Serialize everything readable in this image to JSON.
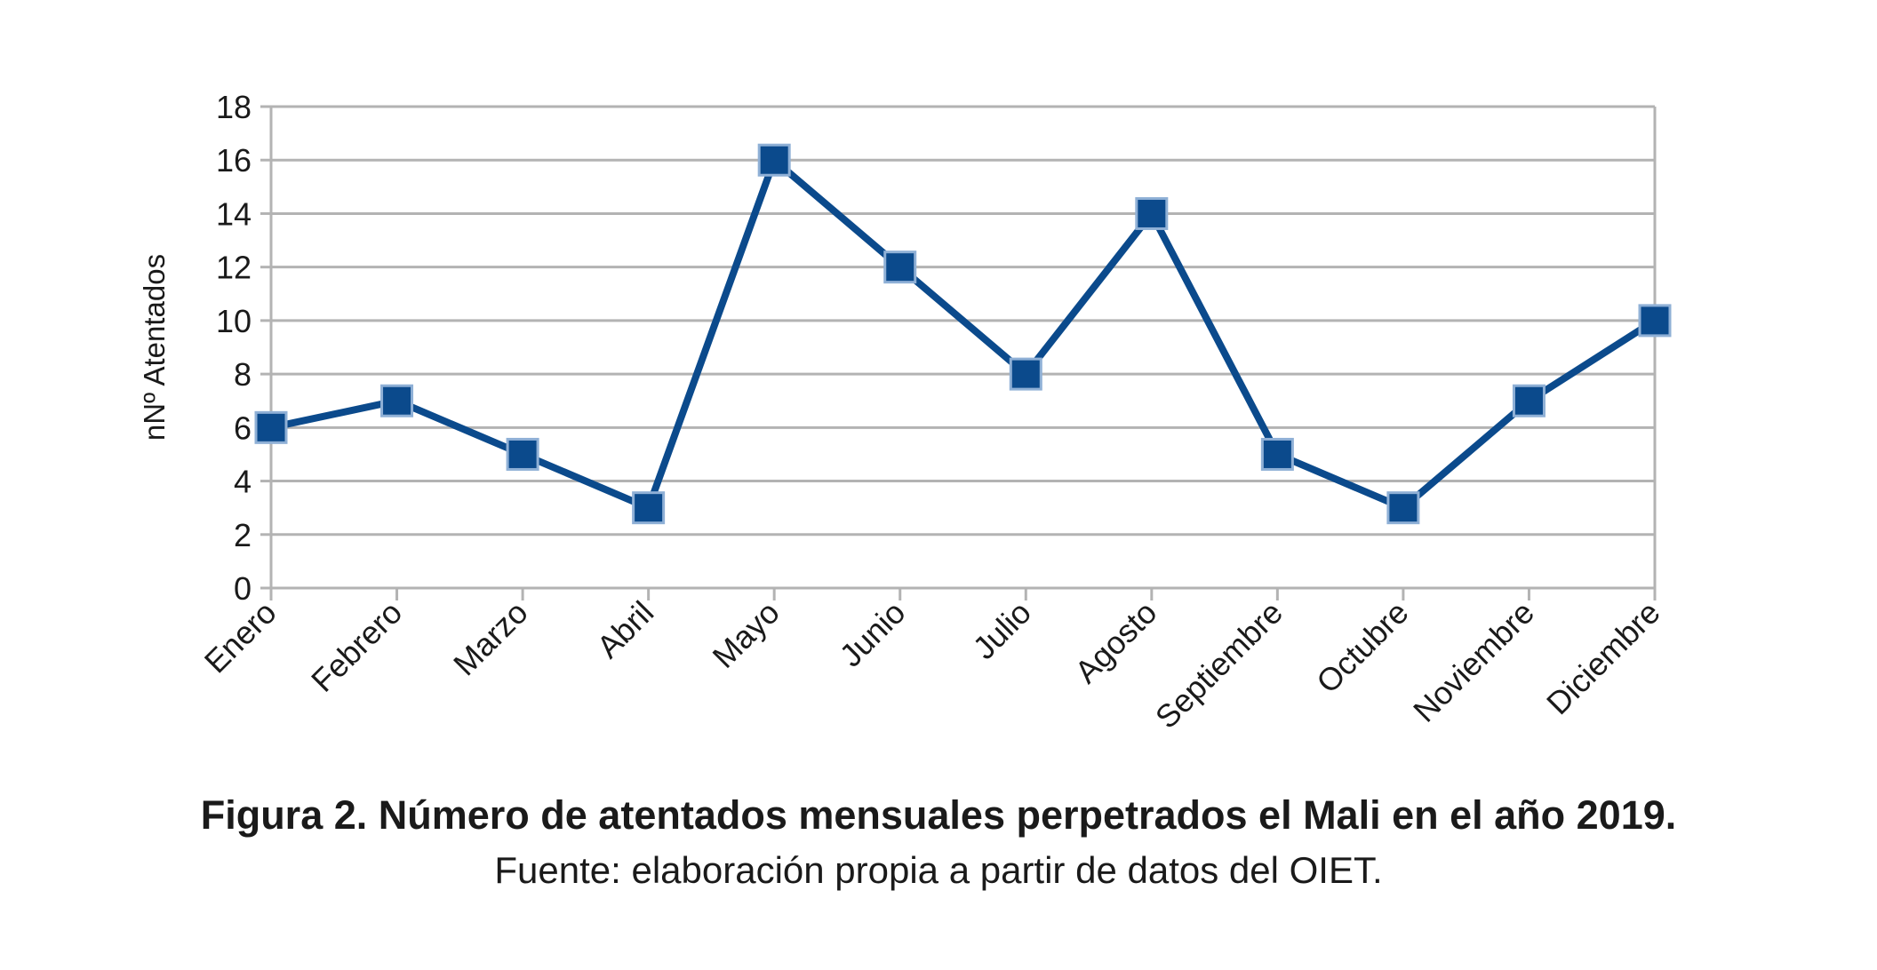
{
  "chart_data": {
    "type": "line",
    "categories": [
      "Enero",
      "Febrero",
      "Marzo",
      "Abril",
      "Mayo",
      "Junio",
      "Julio",
      "Agosto",
      "Septiembre",
      "Octubre",
      "Noviembre",
      "Diciembre"
    ],
    "series": [
      {
        "values": [
          6,
          7,
          5,
          3,
          16,
          12,
          8,
          14,
          5,
          3,
          7,
          10
        ],
        "color": "#0b4a8c"
      }
    ],
    "title": "",
    "xlabel": "",
    "ylabel": "nNº Atentados",
    "ylim": [
      0,
      18
    ],
    "yticks": [
      0,
      2,
      4,
      6,
      8,
      10,
      12,
      14,
      16,
      18
    ],
    "grid": true,
    "marker": "square",
    "gridColor": "#b3b3b3"
  },
  "caption": {
    "title": "Figura 2. Número de atentados mensuales perpetrados el Mali en el año 2019.",
    "source": "Fuente: elaboración propia a partir de datos del OIET."
  }
}
